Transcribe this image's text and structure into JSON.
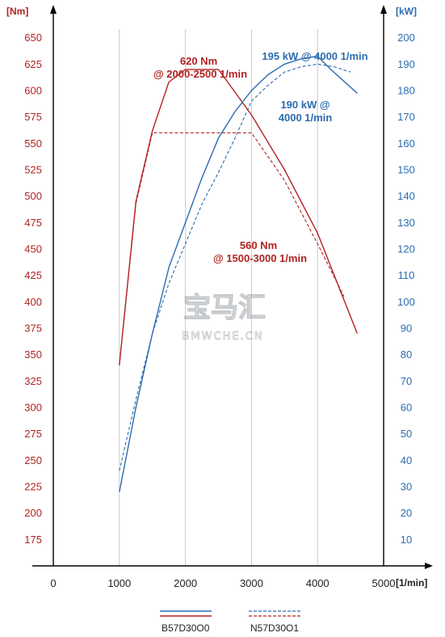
{
  "chart_data": {
    "type": "line",
    "x_axis": {
      "unit": "[1/min]",
      "min": 0,
      "max": 5000,
      "ticks": [
        0,
        1000,
        2000,
        3000,
        4000,
        5000
      ]
    },
    "y_left": {
      "unit": "[Nm]",
      "min": 150,
      "max": 675,
      "ticks": [
        175,
        200,
        225,
        250,
        275,
        300,
        325,
        350,
        375,
        400,
        425,
        450,
        475,
        500,
        525,
        550,
        575,
        600,
        625,
        650
      ]
    },
    "y_right": {
      "unit": "[kW]",
      "min": 0,
      "max": 210,
      "ticks": [
        10,
        20,
        30,
        40,
        50,
        60,
        70,
        80,
        90,
        100,
        110,
        120,
        130,
        140,
        150,
        160,
        170,
        180,
        190,
        200
      ]
    },
    "grid": "vertical",
    "series": [
      {
        "name": "B57D30O0",
        "quantity": "torque",
        "axis": "left",
        "color": "#b22222",
        "dash": false,
        "points": [
          [
            1000,
            340
          ],
          [
            1250,
            495
          ],
          [
            1500,
            562
          ],
          [
            1750,
            608
          ],
          [
            2000,
            620
          ],
          [
            2500,
            620
          ],
          [
            3000,
            577
          ],
          [
            3500,
            525
          ],
          [
            4000,
            465
          ],
          [
            4600,
            370
          ]
        ]
      },
      {
        "name": "N57D30O1",
        "quantity": "torque",
        "axis": "left",
        "color": "#b22222",
        "dash": true,
        "points": [
          [
            1000,
            340
          ],
          [
            1250,
            493
          ],
          [
            1500,
            560
          ],
          [
            3000,
            560
          ],
          [
            3500,
            515
          ],
          [
            4000,
            455
          ],
          [
            4400,
            405
          ]
        ]
      },
      {
        "name": "B57D30O0",
        "quantity": "power",
        "axis": "right",
        "color": "#2b6cb0",
        "dash": false,
        "points": [
          [
            1000,
            28
          ],
          [
            1250,
            60
          ],
          [
            1500,
            88
          ],
          [
            1750,
            113
          ],
          [
            2000,
            130
          ],
          [
            2250,
            147
          ],
          [
            2500,
            162
          ],
          [
            2750,
            172
          ],
          [
            3000,
            180
          ],
          [
            3250,
            186
          ],
          [
            3500,
            190
          ],
          [
            3750,
            192
          ],
          [
            4000,
            193
          ],
          [
            4200,
            188
          ],
          [
            4600,
            179
          ]
        ]
      },
      {
        "name": "N57D30O1",
        "quantity": "power",
        "axis": "right",
        "color": "#2b6cb0",
        "dash": true,
        "points": [
          [
            1000,
            36
          ],
          [
            1250,
            63
          ],
          [
            1500,
            88
          ],
          [
            1750,
            107
          ],
          [
            2000,
            122
          ],
          [
            2250,
            137
          ],
          [
            2500,
            149
          ],
          [
            2750,
            162
          ],
          [
            3000,
            176
          ],
          [
            3250,
            182
          ],
          [
            3500,
            187
          ],
          [
            3750,
            189
          ],
          [
            4000,
            190
          ],
          [
            4250,
            189
          ],
          [
            4500,
            187
          ]
        ]
      }
    ]
  },
  "annotations": {
    "torque_peak_new": {
      "line1": "620 Nm",
      "line2": "@ 2000-2500 1/min"
    },
    "torque_peak_old": {
      "line1": "560 Nm",
      "line2": "@ 1500-3000 1/min"
    },
    "power_peak_new": {
      "line1": "195 kW @ 4000 1/min"
    },
    "power_peak_old": {
      "line1": "190 kW @",
      "line2": "4000 1/min"
    }
  },
  "legend": {
    "items": [
      {
        "label": "B57D30O0",
        "style": "solid"
      },
      {
        "label": "N57D30O1",
        "style": "dashed"
      }
    ]
  },
  "watermark": {
    "chinese": "宝马汇",
    "latin": "BMWCHE.CN"
  },
  "colors": {
    "torque": "#b22222",
    "power": "#2b6cb0",
    "axis": "#000000",
    "grid": "#c8c8c8"
  }
}
